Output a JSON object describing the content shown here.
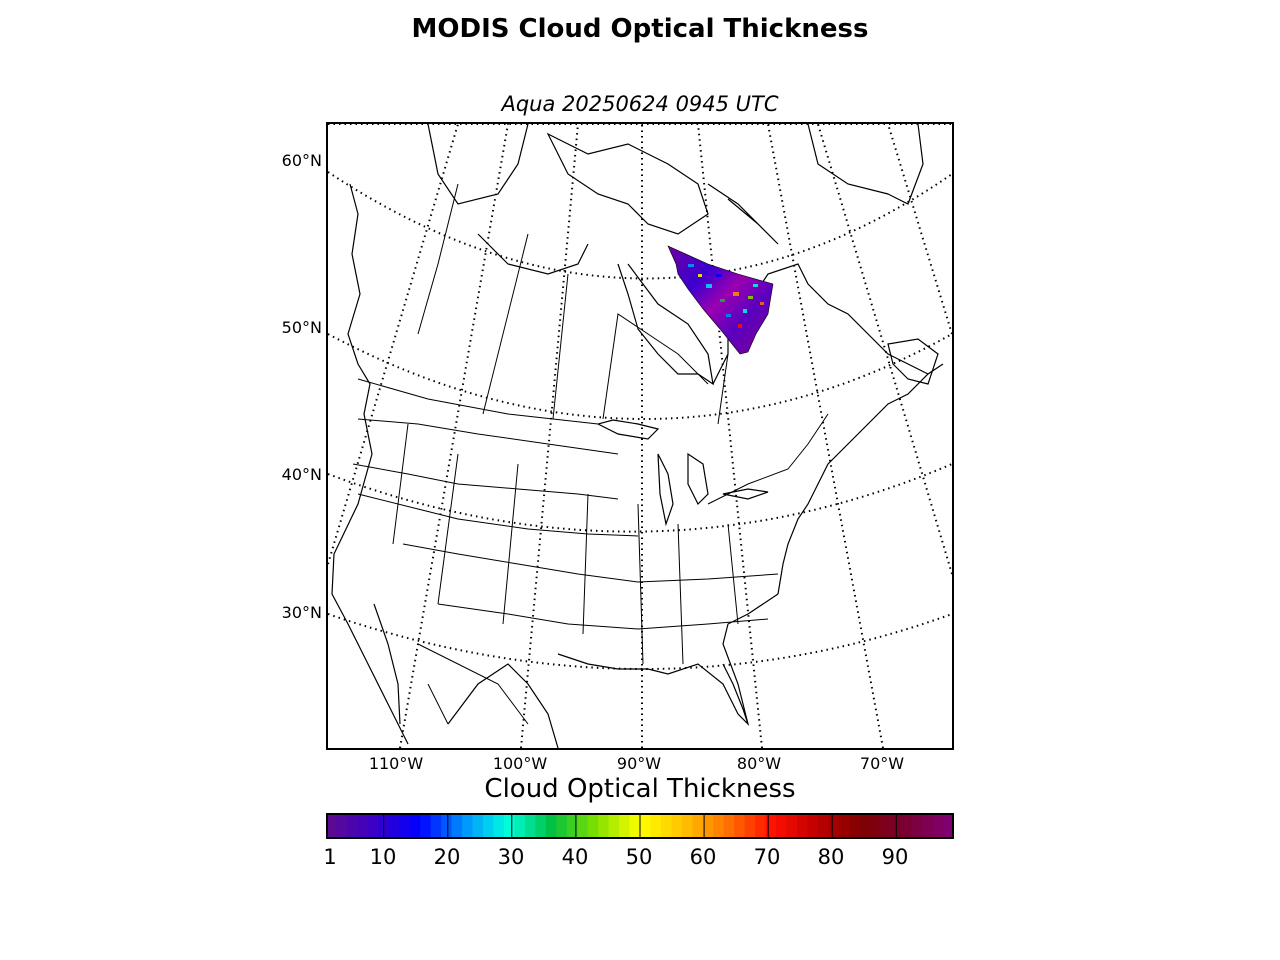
{
  "title": "MODIS Cloud Optical Thickness",
  "subtitle": "Aqua 20250624 0945 UTC",
  "map": {
    "lat_labels": [
      "60°N",
      "50°N",
      "40°N",
      "30°N"
    ],
    "lon_labels": [
      "110°W",
      "100°W",
      "90°W",
      "80°W",
      "70°W"
    ]
  },
  "colorbar": {
    "label": "Cloud Optical Thickness",
    "ticks": [
      "1",
      "10",
      "20",
      "30",
      "40",
      "50",
      "60",
      "70",
      "80",
      "90"
    ],
    "range": [
      1,
      99
    ],
    "colors": [
      "#5b0a92",
      "#3a00c8",
      "#0000ff",
      "#0090ff",
      "#00ffe0",
      "#00c040",
      "#80e000",
      "#ffff00",
      "#ffc000",
      "#ff7000",
      "#ff1000",
      "#c00000",
      "#800000",
      "#7a0030",
      "#800070"
    ]
  }
}
